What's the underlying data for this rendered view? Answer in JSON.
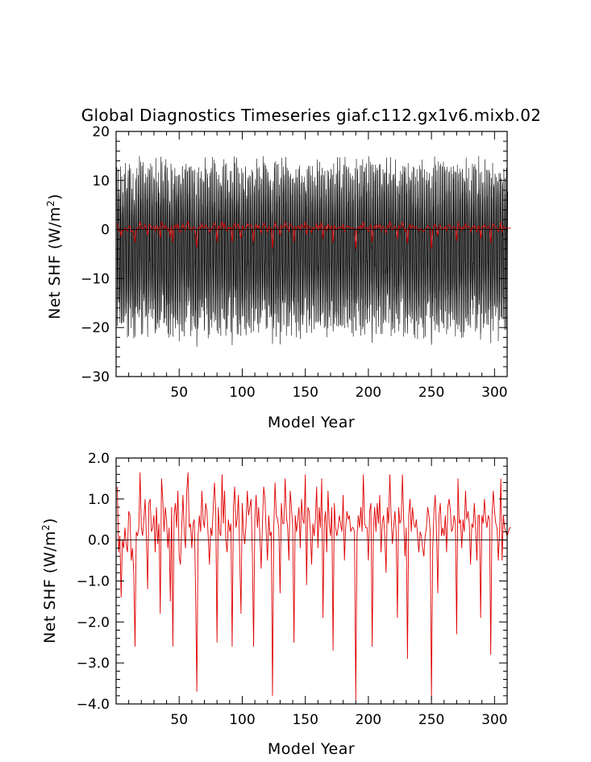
{
  "page": {
    "title": "Global Diagnostics Timeseries giaf.c112.gx1v6.mixb.02"
  },
  "chart_data": [
    {
      "type": "line",
      "xlabel": "Model Year",
      "ylabel": "Net SHF (W/m",
      "ylabel_sup": "2",
      "ylabel_close": ")",
      "xlim": [
        0,
        310
      ],
      "ylim": [
        -30,
        20
      ],
      "xticks": [
        50,
        100,
        150,
        200,
        250,
        300
      ],
      "yticks": [
        20,
        10,
        0,
        -10,
        -20,
        -30
      ],
      "ytick_labels": [
        "20",
        "10",
        "0",
        "−10",
        "−20",
        "−30"
      ],
      "series": [
        {
          "style": "monthly",
          "color": "#000000",
          "description_stats": {
            "approx_max": 15,
            "approx_min": -24,
            "n_years": 310,
            "samples_per_year": 12
          }
        },
        {
          "style": "annual",
          "color": "#e00000",
          "values_ref": "annual"
        }
      ],
      "zero_line": true,
      "grid": false
    },
    {
      "type": "line",
      "xlabel": "Model Year",
      "ylabel": "Net SHF (W/m",
      "ylabel_sup": "2",
      "ylabel_close": ")",
      "xlim": [
        0,
        310
      ],
      "ylim": [
        -4,
        2
      ],
      "xticks": [
        50,
        100,
        150,
        200,
        250,
        300
      ],
      "yticks": [
        2,
        1,
        0,
        -1,
        -2,
        -3,
        -4
      ],
      "ytick_labels": [
        "2.0",
        "1.0",
        "0.0",
        "−1.0",
        "−2.0",
        "−3.0",
        "−4.0"
      ],
      "series": [
        {
          "style": "annual",
          "color": "#e00000",
          "x_start": 1,
          "x_step": 1,
          "values": [
            1.3,
            -0.3,
            0.1,
            -1.4,
            0.0,
            -0.2,
            0.3,
            -0.1,
            -0.3,
            0.7,
            0.6,
            -0.5,
            -0.2,
            -0.8,
            -2.6,
            0.2,
            0.1,
            0.3,
            1.65,
            0.3,
            0.1,
            0.5,
            1.0,
            0.1,
            -1.2,
            0.9,
            1.0,
            0.2,
            0.3,
            0.6,
            -0.3,
            0.8,
            -0.1,
            0.4,
            -1.8,
            1.5,
            1.0,
            0.2,
            0.8,
            0.5,
            -0.2,
            0.3,
            -1.5,
            0.8,
            -2.6,
            0.6,
            0.9,
            0.3,
            1.2,
            -0.4,
            -0.6,
            0.3,
            1.1,
            0.2,
            -0.2,
            1.2,
            1.65,
            0.3,
            0.4,
            -0.2,
            0.4,
            0.5,
            -1.2,
            -3.7,
            0.1,
            0.6,
            0.2,
            1.2,
            0.5,
            0.3,
            0.9,
            0.7,
            0.1,
            -0.6,
            0.3,
            0.1,
            0.8,
            1.4,
            0.7,
            -2.5,
            0.8,
            0.2,
            0.1,
            1.6,
            0.4,
            1.2,
            0.0,
            -0.3,
            0.5,
            0.2,
            0.4,
            -2.6,
            0.8,
            1.3,
            0.3,
            0.5,
            1.1,
            -0.4,
            -1.8,
            0.9,
            0.2,
            -0.1,
            0.4,
            1.2,
            0.6,
            0.8,
            1.0,
            -0.3,
            -2.6,
            0.5,
            1.1,
            0.3,
            0.8,
            0.1,
            -0.7,
            0.4,
            1.3,
            1.0,
            0.2,
            -0.5,
            0.6,
            0.1,
            0.2,
            -3.8,
            0.3,
            1.4,
            0.6,
            0.5,
            0.3,
            -1.3,
            0.9,
            0.4,
            0.4,
            1.5,
            0.6,
            0.3,
            -0.5,
            1.2,
            0.8,
            0.3,
            -2.5,
            0.6,
            0.2,
            0.5,
            0.8,
            -0.2,
            1.0,
            0.5,
            0.4,
            1.6,
            -1.1,
            0.8,
            0.7,
            0.2,
            -0.6,
            0.4,
            0.1,
            0.5,
            1.3,
            -0.2,
            0.8,
            0.3,
            1.5,
            -1.9,
            0.4,
            0.7,
            -0.3,
            1.2,
            0.4,
            0.1,
            0.8,
            -2.7,
            0.9,
            0.3,
            0.1,
            0.3,
            0.6,
            0.4,
            0.2,
            1.1,
            -0.5,
            0.3,
            0.7,
            0.5,
            0.6,
            0.2,
            0.3,
            0.3,
            0.2,
            -3.9,
            0.1,
            0.6,
            0.3,
            0.8,
            0.2,
            1.6,
            0.4,
            0.3,
            0.3,
            -0.5,
            0.7,
            0.9,
            -2.6,
            0.3,
            0.8,
            0.2,
            0.9,
            0.4,
            1.1,
            -0.3,
            0.4,
            0.6,
            0.1,
            -0.8,
            0.8,
            0.4,
            1.6,
            0.6,
            -0.1,
            0.3,
            0.7,
            0.2,
            -1.9,
            0.8,
            0.4,
            0.5,
            1.6,
            0.5,
            -0.4,
            0.3,
            -2.9,
            0.6,
            1.0,
            0.2,
            0.8,
            0.4,
            0.3,
            0.5,
            0.1,
            -0.3,
            0.2,
            0.1,
            -0.2,
            -0.4,
            0.1,
            0.3,
            0.8,
            0.6,
            0.2,
            -3.9,
            -0.2,
            0.7,
            1.1,
            0.2,
            -1.3,
            0.6,
            0.9,
            0.1,
            0.3,
            0.1,
            0.6,
            -0.3,
            0.8,
            1.0,
            0.7,
            0.2,
            0.3,
            0.6,
            0.4,
            -2.3,
            1.5,
            0.4,
            0.5,
            -0.2,
            0.5,
            0.2,
            1.2,
            0.5,
            0.7,
            0.4,
            -0.6,
            0.4,
            0.3,
            0.9,
            0.3,
            -0.5,
            0.6,
            0.6,
            -1.9,
            0.6,
            0.4,
            1.0,
            0.5,
            0.3,
            0.6,
            0.5,
            -2.8,
            0.6,
            1.2,
            0.7,
            0.4,
            0.3,
            -0.5,
            0.2,
            1.5,
            -0.5,
            0.6,
            0.3,
            0.2,
            0.1,
            0.2,
            0.3,
            0.3
          ]
        }
      ],
      "zero_line": true,
      "grid": false
    }
  ]
}
